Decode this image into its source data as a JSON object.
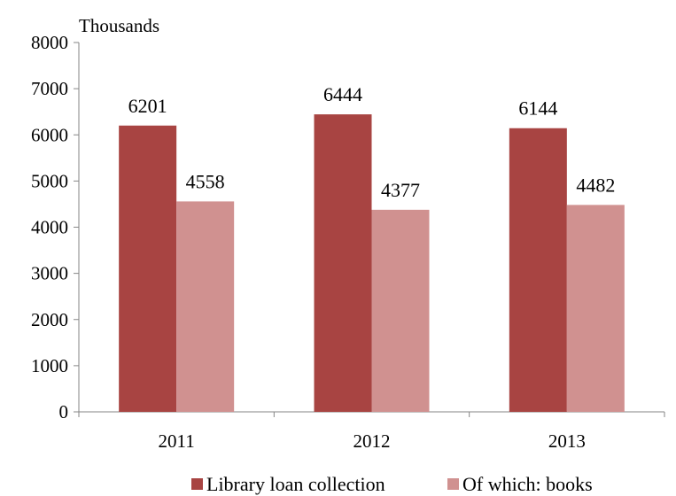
{
  "chart_data": {
    "type": "bar",
    "unit_label": "Thousands",
    "categories": [
      "2011",
      "2012",
      "2013"
    ],
    "series": [
      {
        "name": "Library loan collection",
        "values": [
          6201,
          6444,
          6144
        ],
        "color": "#a84442"
      },
      {
        "name": "Of which: books",
        "values": [
          4558,
          4377,
          4482
        ],
        "color": "#d09190"
      }
    ],
    "ylim": [
      0,
      8000
    ],
    "yticks": [
      0,
      1000,
      2000,
      3000,
      4000,
      5000,
      6000,
      7000,
      8000
    ],
    "data_labels": true,
    "grid": false,
    "legend": "bottom"
  }
}
